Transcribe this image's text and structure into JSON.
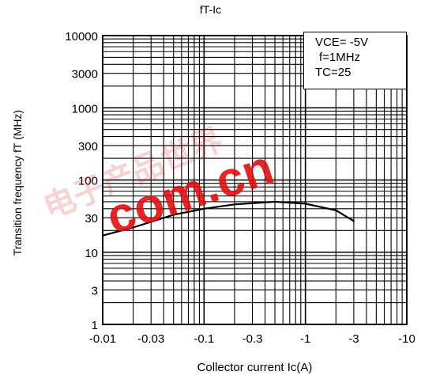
{
  "chart_data": {
    "type": "line",
    "title": "fT-Ic",
    "xlabel": "Collector current Ic(A)",
    "ylabel": "Transition frequency fT (MHz)",
    "x_scale": "log",
    "y_scale": "log",
    "xlim": [
      -0.01,
      -10
    ],
    "ylim": [
      1,
      10000
    ],
    "x_ticks": [
      "-0.01",
      "-0.03",
      "-0.1",
      "-0.3",
      "-1",
      "-3",
      "-10"
    ],
    "y_ticks": [
      "1",
      "3",
      "10",
      "30",
      "100",
      "300",
      "1000",
      "3000",
      "10000"
    ],
    "grid": true,
    "legend": [
      "VCE= -5V",
      "f=1MHz",
      "TC=25"
    ],
    "legend_position": "top-right",
    "series": [
      {
        "x": [
          -0.01,
          -0.02,
          -0.05,
          -0.1,
          -0.2,
          -0.5,
          -1,
          -2,
          -3
        ],
        "y": [
          17,
          22,
          33,
          40,
          46,
          50,
          47,
          38,
          27
        ]
      }
    ]
  },
  "watermark": {
    "text": "com.cn",
    "chinese": "电子产品世界",
    "color": "#e01010"
  }
}
